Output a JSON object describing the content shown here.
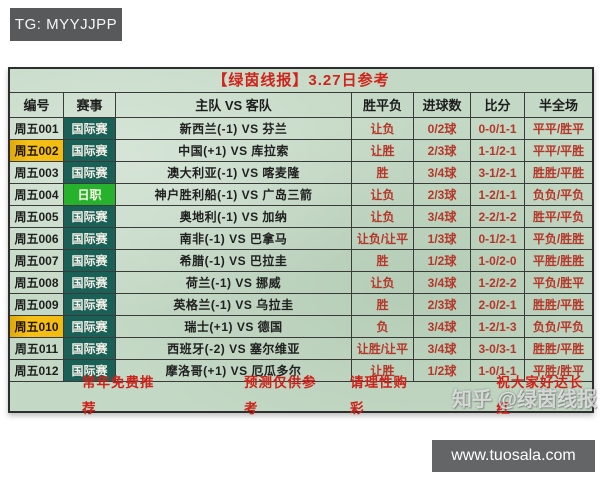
{
  "tg_badge": {
    "label": "TG: MYYJJPP"
  },
  "site_badge": {
    "label": "www.tuosala.com"
  },
  "watermark": {
    "label": "知乎 @绿茵线报"
  },
  "colors": {
    "title_red": "#d0231b",
    "pick_red": "#b5372a",
    "league_teal": "#1b6056",
    "league_green": "#27b22e",
    "highlight_yellow": "#f6c118",
    "table_green": "#c4d9c5",
    "badge_gray": "#58595b"
  },
  "table": {
    "title": "【绿茵线报】3.27日参考",
    "headers": [
      "编号",
      "赛事",
      "主队 VS 客队",
      "胜平负",
      "进球数",
      "比分",
      "半全场"
    ],
    "rows": [
      {
        "id": "周五001",
        "league": "国际赛",
        "match": "新西兰(-1) VS 芬兰",
        "wdl": "让负",
        "goals": "0/2球",
        "score": "0-0/1-1",
        "half_full": "平平/胜平"
      },
      {
        "id": "周五002",
        "league": "国际赛",
        "match": "中国(+1) VS 库拉索",
        "wdl": "让胜",
        "goals": "2/3球",
        "score": "1-1/2-1",
        "half_full": "平平/平胜"
      },
      {
        "id": "周五003",
        "league": "国际赛",
        "match": "澳大利亚(-1) VS 喀麦隆",
        "wdl": "胜",
        "goals": "3/4球",
        "score": "3-1/2-1",
        "half_full": "胜胜/平胜"
      },
      {
        "id": "周五004",
        "league": "日职",
        "match": "神户胜利船(-1) VS 广岛三箭",
        "wdl": "让负",
        "goals": "2/3球",
        "score": "1-2/1-1",
        "half_full": "负负/平负"
      },
      {
        "id": "周五005",
        "league": "国际赛",
        "match": "奥地利(-1) VS 加纳",
        "wdl": "让负",
        "goals": "3/4球",
        "score": "2-2/1-2",
        "half_full": "胜平/平负"
      },
      {
        "id": "周五006",
        "league": "国际赛",
        "match": "南非(-1) VS 巴拿马",
        "wdl": "让负/让平",
        "goals": "1/3球",
        "score": "0-1/2-1",
        "half_full": "平负/胜胜"
      },
      {
        "id": "周五007",
        "league": "国际赛",
        "match": "希腊(-1) VS 巴拉圭",
        "wdl": "胜",
        "goals": "1/2球",
        "score": "1-0/2-0",
        "half_full": "平胜/胜胜"
      },
      {
        "id": "周五008",
        "league": "国际赛",
        "match": "荷兰(-1) VS 挪威",
        "wdl": "让负",
        "goals": "3/4球",
        "score": "1-2/2-2",
        "half_full": "平负/胜平"
      },
      {
        "id": "周五009",
        "league": "国际赛",
        "match": "英格兰(-1) VS 乌拉圭",
        "wdl": "胜",
        "goals": "2/3球",
        "score": "2-0/2-1",
        "half_full": "胜胜/平胜"
      },
      {
        "id": "周五010",
        "league": "国际赛",
        "match": "瑞士(+1) VS 德国",
        "wdl": "负",
        "goals": "3/4球",
        "score": "1-2/1-3",
        "half_full": "负负/平负"
      },
      {
        "id": "周五011",
        "league": "国际赛",
        "match": "西班牙(-2) VS 塞尔维亚",
        "wdl": "让胜/让平",
        "goals": "3/4球",
        "score": "3-0/3-1",
        "half_full": "胜胜/平胜"
      },
      {
        "id": "周五012",
        "league": "国际赛",
        "match": "摩洛哥(+1) VS 厄瓜多尔",
        "wdl": "让胜",
        "goals": "1/2球",
        "score": "1-0/1-1",
        "half_full": "平胜/胜平"
      }
    ],
    "footer": {
      "item1": "常年免费推荐",
      "item2": "预测仅供参考",
      "item3": "请理性购彩",
      "item4": "祝大家好达长红"
    }
  }
}
